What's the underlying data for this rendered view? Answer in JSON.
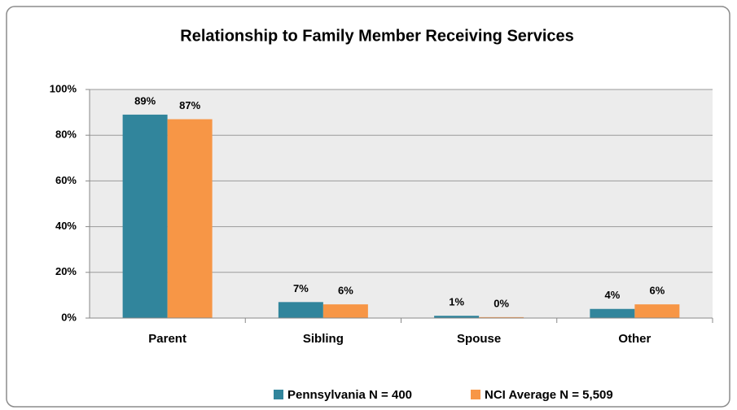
{
  "chart_data": {
    "type": "bar",
    "title": "Relationship to Family Member Receiving Services",
    "categories": [
      "Parent",
      "Sibling",
      "Spouse",
      "Other"
    ],
    "series": [
      {
        "name": "Pennsylvania N = 400",
        "color": "#31859c",
        "values": [
          89,
          7,
          1,
          4
        ],
        "value_labels": [
          "89%",
          "7%",
          "1%",
          "4%"
        ]
      },
      {
        "name": "NCI Average N = 5,509",
        "color": "#f79646",
        "values": [
          87,
          6,
          0.4,
          6
        ],
        "value_labels": [
          "87%",
          "6%",
          "0%",
          "6%"
        ]
      }
    ],
    "ylim": [
      0,
      100
    ],
    "yticks": [
      {
        "value": 0,
        "label": "0%"
      },
      {
        "value": 20,
        "label": "20%"
      },
      {
        "value": 40,
        "label": "40%"
      },
      {
        "value": 60,
        "label": "60%"
      },
      {
        "value": 80,
        "label": "80%"
      },
      {
        "value": 100,
        "label": "100%"
      }
    ],
    "grid": true,
    "legend": "bottom"
  }
}
